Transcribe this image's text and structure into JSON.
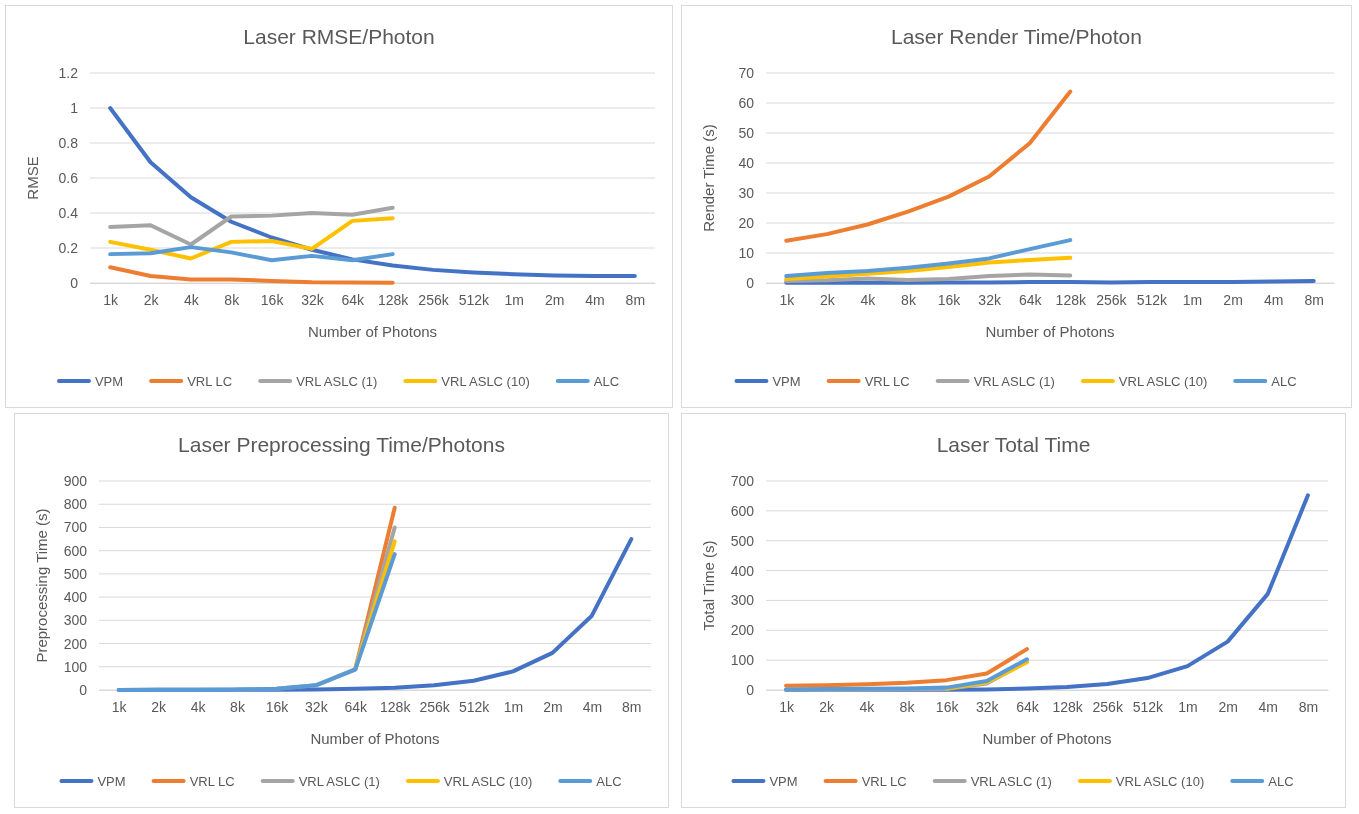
{
  "chart_data": [
    {
      "type": "line",
      "title": "Laser RMSE/Photon",
      "xlabel": "Number of Photons",
      "ylabel": "RMSE",
      "categories": [
        "1k",
        "2k",
        "4k",
        "8k",
        "16k",
        "32k",
        "64k",
        "128k",
        "256k",
        "512k",
        "1m",
        "2m",
        "4m",
        "8m"
      ],
      "ylim": [
        0,
        1.2
      ],
      "yticks": [
        0,
        0.2,
        0.4,
        0.6,
        0.8,
        1,
        1.2
      ],
      "grid": "y",
      "legend": "bottom",
      "series": [
        {
          "name": "VPM",
          "color": "#4472c4",
          "values": [
            1,
            0.69,
            0.49,
            0.35,
            0.26,
            0.19,
            0.135,
            0.1,
            0.075,
            0.06,
            0.05,
            0.043,
            0.04,
            0.04
          ]
        },
        {
          "name": "VRL LC",
          "color": "#ed7d31",
          "values": [
            0.09,
            0.04,
            0.02,
            0.02,
            0.012,
            0.004,
            0.003,
            0.001,
            null,
            null,
            null,
            null,
            null,
            null
          ]
        },
        {
          "name": "VRL ASLC (1)",
          "color": "#a5a5a5",
          "values": [
            0.32,
            0.33,
            0.22,
            0.38,
            0.385,
            0.4,
            0.39,
            0.43,
            null,
            null,
            null,
            null,
            null,
            null
          ]
        },
        {
          "name": "VRL ASLC (10)",
          "color": "#ffc000",
          "values": [
            0.235,
            0.19,
            0.14,
            0.235,
            0.24,
            0.195,
            0.355,
            0.37,
            null,
            null,
            null,
            null,
            null,
            null
          ]
        },
        {
          "name": "ALC",
          "color": "#5b9bd5",
          "values": [
            0.165,
            0.17,
            0.205,
            0.175,
            0.13,
            0.155,
            0.13,
            0.165,
            null,
            null,
            null,
            null,
            null,
            null
          ]
        }
      ]
    },
    {
      "type": "line",
      "title": "Laser Render Time/Photon",
      "xlabel": "Number of Photons",
      "ylabel": "Render Time (s)",
      "categories": [
        "1k",
        "2k",
        "4k",
        "8k",
        "16k",
        "32k",
        "64k",
        "128k",
        "256k",
        "512k",
        "1m",
        "2m",
        "4m",
        "8m"
      ],
      "ylim": [
        0,
        70
      ],
      "yticks": [
        0,
        10,
        20,
        30,
        40,
        50,
        60,
        70
      ],
      "grid": "y",
      "legend": "bottom",
      "series": [
        {
          "name": "VPM",
          "color": "#4472c4",
          "values": [
            0.1,
            0.1,
            0.1,
            0.1,
            0.2,
            0.2,
            0.3,
            0.3,
            0.2,
            0.3,
            0.3,
            0.3,
            0.5,
            0.7
          ]
        },
        {
          "name": "VRL LC",
          "color": "#ed7d31",
          "values": [
            14.1,
            16.3,
            19.5,
            23.8,
            28.8,
            35.5,
            46.6,
            63.8,
            null,
            null,
            null,
            null,
            null,
            null
          ]
        },
        {
          "name": "VRL ASLC (1)",
          "color": "#a5a5a5",
          "values": [
            0.7,
            0.9,
            1.5,
            1,
            1.3,
            2.3,
            2.8,
            2.5,
            null,
            null,
            null,
            null,
            null,
            null
          ]
        },
        {
          "name": "VRL ASLC (10)",
          "color": "#ffc000",
          "values": [
            1.3,
            2.2,
            3.1,
            4,
            5.3,
            6.8,
            7.7,
            8.4,
            null,
            null,
            null,
            null,
            null,
            null
          ]
        },
        {
          "name": "ALC",
          "color": "#5b9bd5",
          "values": [
            2.3,
            3.3,
            4,
            5.1,
            6.5,
            8.2,
            11.3,
            14.3,
            null,
            null,
            null,
            null,
            null,
            null
          ]
        }
      ]
    },
    {
      "type": "line",
      "title": "Laser Preprocessing Time/Photons",
      "xlabel": "Number of Photons",
      "ylabel": "Preprocessing Time (s)",
      "categories": [
        "1k",
        "2k",
        "4k",
        "8k",
        "16k",
        "32k",
        "64k",
        "128k",
        "256k",
        "512k",
        "1m",
        "2m",
        "4m",
        "8m"
      ],
      "ylim": [
        0,
        900
      ],
      "yticks": [
        0,
        100,
        200,
        300,
        400,
        500,
        600,
        700,
        800,
        900
      ],
      "grid": "y",
      "legend": "bottom",
      "series": [
        {
          "name": "VPM",
          "color": "#4472c4",
          "values": [
            0,
            1,
            1,
            1,
            1,
            2,
            5,
            10,
            20,
            40,
            80,
            160,
            320,
            650
          ]
        },
        {
          "name": "VRL LC",
          "color": "#ed7d31",
          "values": [
            null,
            null,
            null,
            null,
            null,
            null,
            90,
            785,
            null,
            null,
            null,
            null,
            null,
            null
          ]
        },
        {
          "name": "VRL ASLC (1)",
          "color": "#a5a5a5",
          "values": [
            null,
            null,
            null,
            2,
            5,
            20,
            90,
            700,
            null,
            null,
            null,
            null,
            null,
            null
          ]
        },
        {
          "name": "VRL ASLC (10)",
          "color": "#ffc000",
          "values": [
            null,
            null,
            null,
            null,
            null,
            null,
            90,
            640,
            null,
            null,
            null,
            null,
            null,
            null
          ]
        },
        {
          "name": "ALC",
          "color": "#5b9bd5",
          "values": [
            0,
            1,
            1,
            2,
            5,
            20,
            88,
            585,
            null,
            null,
            null,
            null,
            null,
            null
          ]
        }
      ]
    },
    {
      "type": "line",
      "title": "Laser Total Time",
      "xlabel": "Number of Photons",
      "ylabel": "Total Time (s)",
      "categories": [
        "1k",
        "2k",
        "4k",
        "8k",
        "16k",
        "32k",
        "64k",
        "128k",
        "256k",
        "512k",
        "1m",
        "2m",
        "4m",
        "8m"
      ],
      "ylim": [
        0,
        700
      ],
      "yticks": [
        0,
        100,
        200,
        300,
        400,
        500,
        600,
        700
      ],
      "grid": "y",
      "legend": "bottom",
      "series": [
        {
          "name": "VPM",
          "color": "#4472c4",
          "values": [
            0,
            1,
            1,
            1,
            1,
            2,
            5,
            10,
            20,
            40,
            80,
            162,
            322,
            652
          ]
        },
        {
          "name": "VRL LC",
          "color": "#ed7d31",
          "values": [
            14,
            16,
            19,
            24,
            33,
            55,
            137,
            null,
            null,
            null,
            null,
            null,
            null,
            null
          ]
        },
        {
          "name": "VRL ASLC (1)",
          "color": "#a5a5a5",
          "values": [
            1,
            1,
            2,
            3,
            3,
            22,
            95,
            null,
            null,
            null,
            null,
            null,
            null,
            null
          ]
        },
        {
          "name": "VRL ASLC (10)",
          "color": "#ffc000",
          "values": [
            null,
            null,
            null,
            null,
            5,
            25,
            93,
            null,
            null,
            null,
            null,
            null,
            null,
            null
          ]
        },
        {
          "name": "ALC",
          "color": "#5b9bd5",
          "values": [
            2,
            3,
            4,
            5,
            8,
            30,
            103,
            null,
            null,
            null,
            null,
            null,
            null,
            null
          ]
        }
      ]
    }
  ]
}
